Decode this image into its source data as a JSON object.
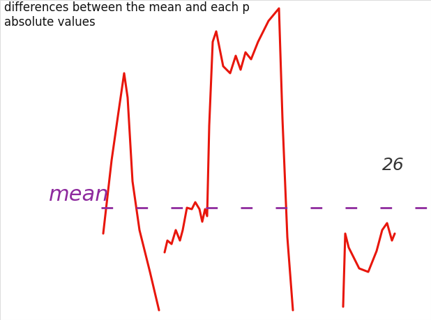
{
  "chart_data": {
    "type": "line",
    "title": "differences between the mean and each p\nabsolute values",
    "x": [
      148,
      152,
      160,
      170,
      178,
      183,
      190,
      200,
      215,
      228,
      232,
      236,
      240,
      246,
      252,
      258,
      262,
      268,
      275,
      280,
      286,
      290,
      294,
      297,
      300,
      305,
      310,
      320,
      330,
      338,
      345,
      352,
      360,
      370,
      385,
      400,
      405,
      412,
      420,
      456,
      492,
      495,
      500,
      515,
      528,
      540,
      548,
      555,
      562,
      566
    ],
    "series": [
      {
        "color": "#e8160c",
        "line_style": "solid",
        "values": [
          124,
          159,
          229,
          299,
          354,
          319,
          199,
          129,
          69,
          14,
          null,
          97,
          114,
          109,
          129,
          114,
          129,
          161,
          159,
          169,
          159,
          141,
          159,
          149,
          279,
          399,
          414,
          364,
          354,
          379,
          359,
          384,
          374,
          399,
          429,
          447,
          289,
          119,
          14,
          null,
          19,
          124,
          104,
          74,
          69,
          99,
          129,
          139,
          114,
          124
        ]
      }
    ],
    "mean": {
      "label": "mean",
      "value": 161,
      "color": "#8e2a9e",
      "line_style": "dashed"
    },
    "annotations": [
      "26"
    ],
    "xlim": [
      0,
      618
    ],
    "ylim": [
      0,
      459
    ],
    "xticks": [],
    "yticks": [],
    "tick_labels": false,
    "grid": false
  }
}
